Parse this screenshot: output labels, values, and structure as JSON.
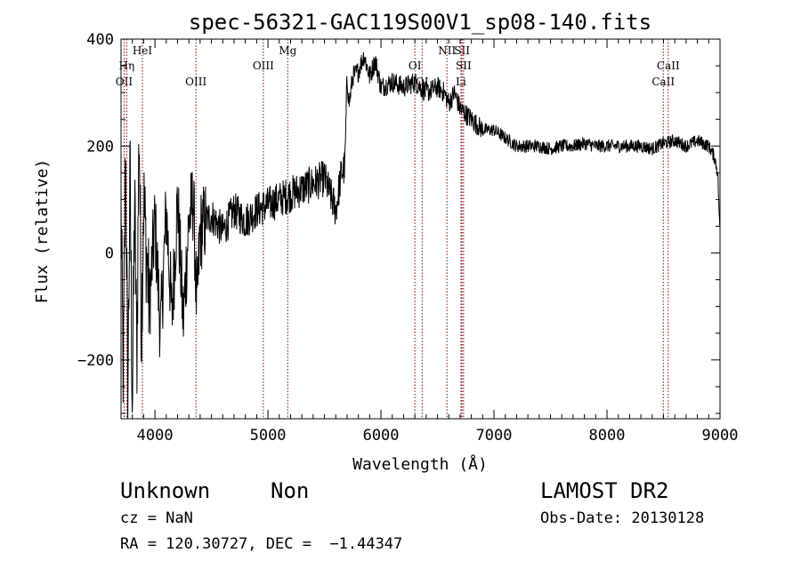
{
  "chart_data": {
    "type": "line",
    "title": "spec-56321-GAC119S00V1_sp08-140.fits",
    "xlabel": "Wavelength (Å)",
    "ylabel": "Flux (relative)",
    "xlim": [
      3700,
      9000
    ],
    "ylim": [
      -310,
      400
    ],
    "xticks": [
      4000,
      5000,
      6000,
      7000,
      8000,
      9000
    ],
    "yticks": [
      -200,
      0,
      200,
      400
    ],
    "ytick_labels": [
      "−200",
      "0",
      "200",
      "400"
    ],
    "grid": false,
    "series": [
      {
        "x": [
          3700,
          3720,
          3740,
          3760,
          3780,
          3800,
          3820,
          3840,
          3860,
          3880,
          3900,
          3950,
          4000,
          4050,
          4100,
          4150,
          4200,
          4250,
          4300,
          4340,
          4370,
          4400,
          4450,
          4500,
          4600,
          4700,
          4800,
          4900,
          5000,
          5100,
          5200,
          5300,
          5400,
          5500,
          5600,
          5650,
          5680,
          5700,
          5720,
          5750,
          5800,
          5850,
          5900,
          5950,
          6000,
          6100,
          6200,
          6300,
          6400,
          6500,
          6560,
          6600,
          6650,
          6700,
          6750,
          6800,
          6900,
          7000,
          7100,
          7200,
          7300,
          7400,
          7500,
          7600,
          7700,
          7800,
          7900,
          8000,
          8100,
          8200,
          8300,
          8400,
          8500,
          8600,
          8700,
          8800,
          8900,
          8950,
          8980,
          9000
        ],
        "y": [
          80,
          -240,
          200,
          -260,
          150,
          -280,
          100,
          -200,
          250,
          -150,
          100,
          -100,
          60,
          -150,
          80,
          -120,
          100,
          -130,
          60,
          100,
          -110,
          40,
          60,
          70,
          40,
          80,
          60,
          80,
          90,
          100,
          110,
          120,
          130,
          140,
          80,
          150,
          160,
          320,
          280,
          330,
          340,
          370,
          330,
          360,
          310,
          320,
          310,
          320,
          300,
          310,
          300,
          280,
          300,
          270,
          260,
          250,
          230,
          230,
          215,
          200,
          200,
          200,
          195,
          200,
          200,
          205,
          200,
          200,
          200,
          200,
          200,
          195,
          205,
          210,
          200,
          210,
          200,
          180,
          150,
          30
        ]
      }
    ],
    "lines": [
      {
        "x": 3727,
        "label": "OII",
        "row": 3
      },
      {
        "x": 3750,
        "label": "Hη",
        "row": 2
      },
      {
        "x": 3889,
        "label": "HeI",
        "row": 1
      },
      {
        "x": 4363,
        "label": "OIII",
        "row": 3
      },
      {
        "x": 4959,
        "label": "OIII",
        "row": 2
      },
      {
        "x": 5175,
        "label": "Mg",
        "row": 1
      },
      {
        "x": 6300,
        "label": "OI",
        "row": 2
      },
      {
        "x": 6364,
        "label": "OI",
        "row": 3
      },
      {
        "x": 6584,
        "label": "NII",
        "row": 1
      },
      {
        "x": 6708,
        "label": "Li",
        "row": 3
      },
      {
        "x": 6717,
        "label": "SII",
        "row": 1
      },
      {
        "x": 6731,
        "label": "SII",
        "row": 2
      },
      {
        "x": 8498,
        "label": "CaII",
        "row": 3
      },
      {
        "x": 8542,
        "label": "CaII",
        "row": 2
      }
    ]
  },
  "info": {
    "class": "Unknown",
    "subclass": "Non",
    "survey": "LAMOST DR2",
    "cz": "cz = NaN",
    "obsdate": "Obs-Date: 20130128",
    "coords": "RA = 120.30727, DEC =  −1.44347"
  }
}
